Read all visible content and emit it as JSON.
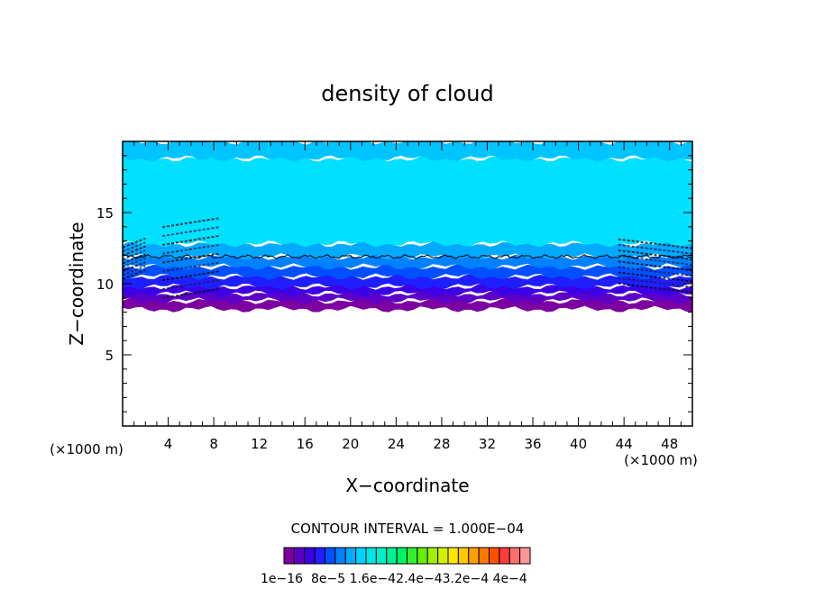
{
  "chart_data": {
    "type": "heatmap",
    "title": "density of cloud",
    "xlabel": "X−coordinate",
    "ylabel": "Z−coordinate",
    "x_unit_left": "(×1000 m)",
    "x_unit_right": "(×1000 m)",
    "xlim": [
      0,
      50
    ],
    "ylim": [
      0,
      20
    ],
    "x_ticks": [
      4,
      8,
      12,
      16,
      20,
      24,
      28,
      32,
      36,
      40,
      44,
      48
    ],
    "x_tick_labels": [
      "4",
      "8",
      "12",
      "16",
      "20",
      "24",
      "28",
      "32",
      "36",
      "40",
      "44",
      "48"
    ],
    "y_ticks": [
      5,
      10,
      15
    ],
    "y_tick_labels": [
      "5",
      "10",
      "15"
    ],
    "contour_interval_text": "CONTOUR INTERVAL = 1.000E−04",
    "colorbar_labels": [
      "1e−16",
      "8e−5",
      "1.6e−4",
      "2.4e−4",
      "3.2e−4",
      "4e−4"
    ],
    "colorbar_label_text": "1e−16  8e−5 1.6e−42.4e−43.2e−4 4e−4",
    "colorbar_colors": [
      "#7d00a0",
      "#5c00c8",
      "#3c00e6",
      "#1e1eff",
      "#0050ff",
      "#0082ff",
      "#00aaff",
      "#00d2ff",
      "#00e6e6",
      "#00f0c8",
      "#00f096",
      "#00f064",
      "#32f032",
      "#64f000",
      "#a0f000",
      "#d2f000",
      "#ffe600",
      "#ffc800",
      "#ffa000",
      "#ff7800",
      "#ff5000",
      "#ff3c3c",
      "#ff6e6e",
      "#ff9696"
    ],
    "cloud_layers": [
      {
        "z_bottom": 8.2,
        "z_top": 8.8,
        "color": "#7d00a0"
      },
      {
        "z_bottom": 8.8,
        "z_top": 9.3,
        "color": "#5c00c8"
      },
      {
        "z_bottom": 9.3,
        "z_top": 9.8,
        "color": "#3c00e6"
      },
      {
        "z_bottom": 9.8,
        "z_top": 10.5,
        "color": "#1e1eff"
      },
      {
        "z_bottom": 10.5,
        "z_top": 11.2,
        "color": "#0050ff"
      },
      {
        "z_bottom": 11.2,
        "z_top": 11.9,
        "color": "#0082ff"
      },
      {
        "z_bottom": 11.9,
        "z_top": 12.8,
        "color": "#00aaff"
      },
      {
        "z_bottom": 12.8,
        "z_top": 18.8,
        "color": "#00e0ff"
      },
      {
        "z_bottom": 18.8,
        "z_top": 20.0,
        "color": "#00c4ff"
      }
    ],
    "contour_line_z": 11.9,
    "wave_regions": [
      {
        "x_start": 0,
        "x_end": 2,
        "z_bottom": 10.5,
        "z_top": 13.0
      },
      {
        "x_start": 3.5,
        "x_end": 8.5,
        "z_bottom": 9.0,
        "z_top": 14.6
      },
      {
        "x_start": 43.5,
        "x_end": 50,
        "z_bottom": 9.5,
        "z_top": 13.0
      }
    ]
  }
}
